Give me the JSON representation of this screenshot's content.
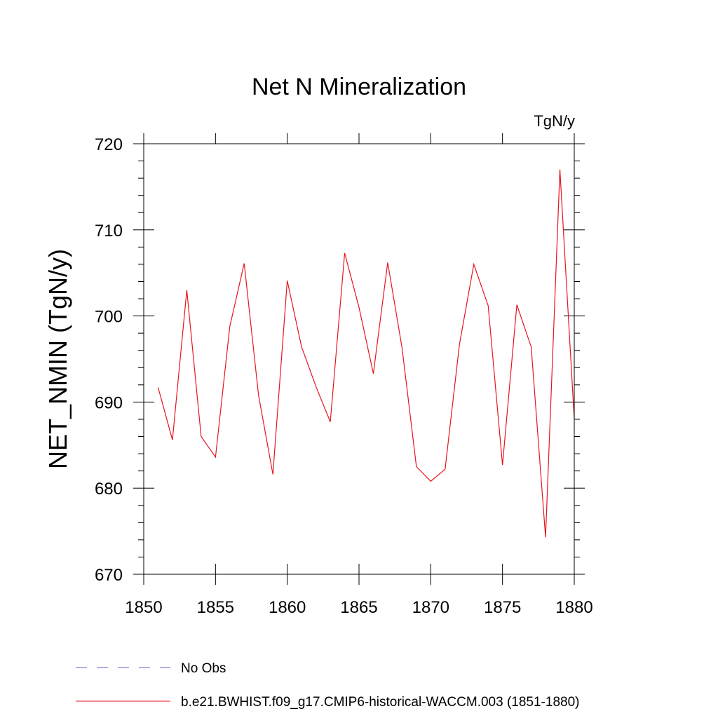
{
  "chart_data": {
    "type": "line",
    "title": "Net N Mineralization",
    "units_label": "TgN/y",
    "xlabel": "",
    "ylabel": "NET_NMIN  (TgN/y)",
    "xlim": [
      1850,
      1880
    ],
    "ylim": [
      670,
      720
    ],
    "x_ticks": [
      1850,
      1855,
      1860,
      1865,
      1870,
      1875,
      1880
    ],
    "y_ticks": [
      670,
      680,
      690,
      700,
      710,
      720
    ],
    "grid": false,
    "legend_position": "bottom",
    "series": [
      {
        "name": "b.e21.BWHIST.f09_g17.CMIP6-historical-WACCM.003 (1851-1880)",
        "color": "#e8141c",
        "dash": "solid",
        "x": [
          1851,
          1852,
          1853,
          1854,
          1855,
          1856,
          1857,
          1858,
          1859,
          1860,
          1861,
          1862,
          1863,
          1864,
          1865,
          1866,
          1867,
          1868,
          1869,
          1870,
          1871,
          1872,
          1873,
          1874,
          1875,
          1876,
          1877,
          1878,
          1879,
          1880
        ],
        "values": [
          691.7,
          685.6,
          703.0,
          686.0,
          683.6,
          698.8,
          706.1,
          690.8,
          681.6,
          704.1,
          696.4,
          691.8,
          687.7,
          707.3,
          701.0,
          693.3,
          706.2,
          696.3,
          682.5,
          680.8,
          682.2,
          696.7,
          706.0,
          701.2,
          682.7,
          701.3,
          696.4,
          674.3,
          717.0,
          688.0
        ]
      }
    ],
    "legend": [
      {
        "label": "No Obs",
        "color": "#6a5acd",
        "dash": "dashed"
      },
      {
        "label": "b.e21.BWHIST.f09_g17.CMIP6-historical-WACCM.003 (1851-1880)",
        "color": "#e8141c",
        "dash": "solid"
      }
    ]
  }
}
